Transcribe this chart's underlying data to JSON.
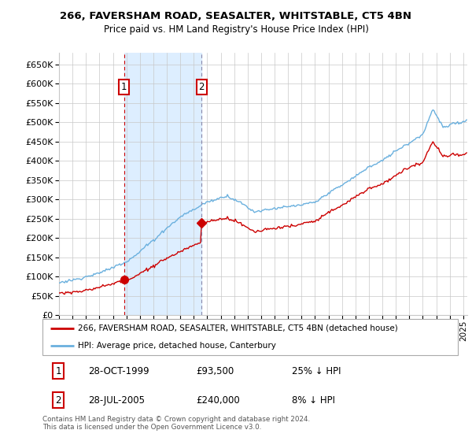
{
  "title": "266, FAVERSHAM ROAD, SEASALTER, WHITSTABLE, CT5 4BN",
  "subtitle": "Price paid vs. HM Land Registry's House Price Index (HPI)",
  "ylim": [
    0,
    680000
  ],
  "yticks": [
    0,
    50000,
    100000,
    150000,
    200000,
    250000,
    300000,
    350000,
    400000,
    450000,
    500000,
    550000,
    600000,
    650000
  ],
  "sale1_date": "28-OCT-1999",
  "sale1_price": 93500,
  "sale1_pct": "25% ↓ HPI",
  "sale2_date": "28-JUL-2005",
  "sale2_price": 240000,
  "sale2_pct": "8% ↓ HPI",
  "legend_line1": "266, FAVERSHAM ROAD, SEASALTER, WHITSTABLE, CT5 4BN (detached house)",
  "legend_line2": "HPI: Average price, detached house, Canterbury",
  "footer": "Contains HM Land Registry data © Crown copyright and database right 2024.\nThis data is licensed under the Open Government Licence v3.0.",
  "hpi_color": "#6ab0de",
  "price_color": "#cc0000",
  "shade_color": "#ddeeff",
  "grid_color": "#c8c8c8",
  "background_color": "#ffffff",
  "sale1_t": 1999.833,
  "sale2_t": 2005.583,
  "xmin": 1995,
  "xmax": 2025.3
}
